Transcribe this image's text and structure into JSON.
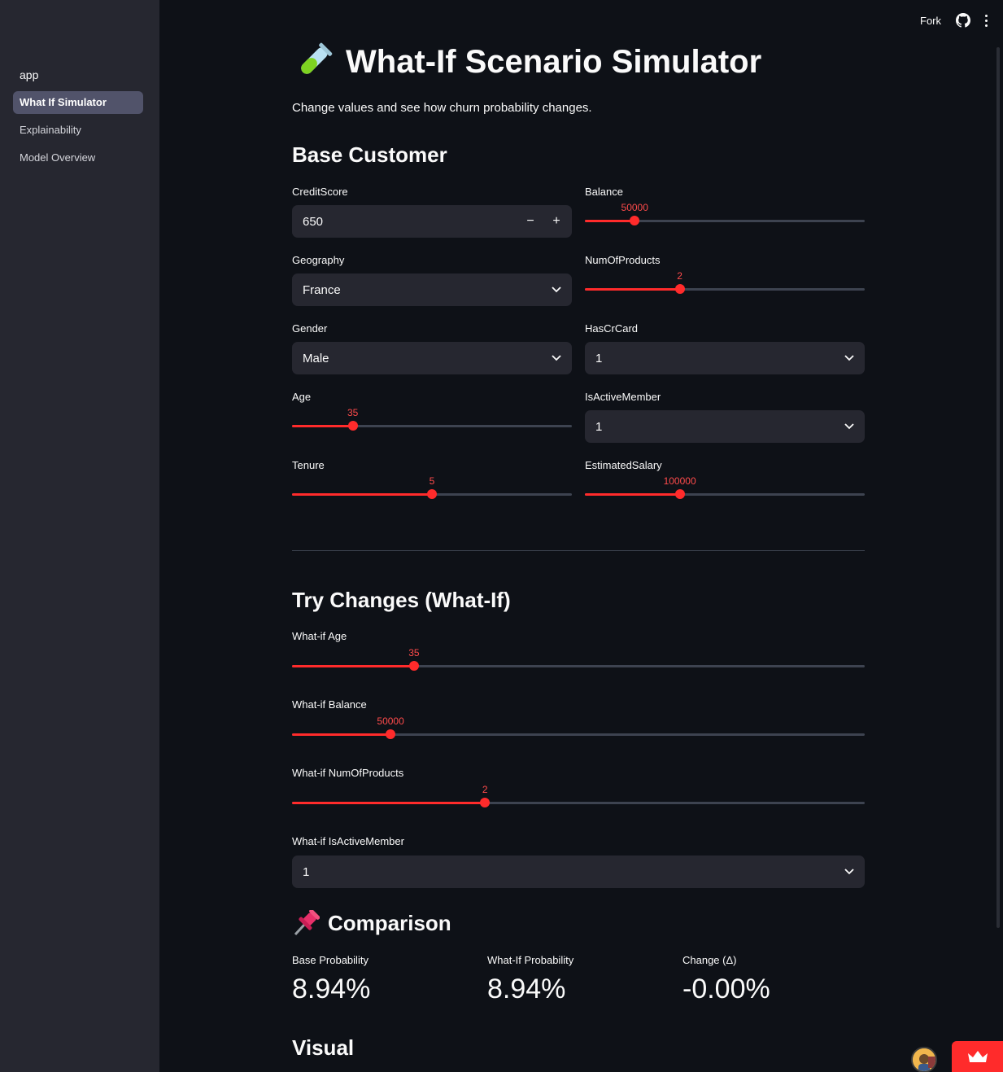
{
  "sidebar": {
    "items": [
      {
        "label": "app"
      },
      {
        "label": "What If Simulator"
      },
      {
        "label": "Explainability"
      },
      {
        "label": "Model Overview"
      }
    ]
  },
  "topbar": {
    "fork_label": "Fork"
  },
  "page": {
    "title": "What-If Scenario Simulator",
    "subtitle": "Change values and see how churn probability changes.",
    "base_heading": "Base Customer",
    "whatif_heading": "Try Changes (What-If)",
    "comparison_heading": "Comparison",
    "visual_heading": "Visual"
  },
  "base": {
    "credit_score": {
      "label": "CreditScore",
      "value": "650"
    },
    "geography": {
      "label": "Geography",
      "value": "France"
    },
    "gender": {
      "label": "Gender",
      "value": "Male"
    },
    "age": {
      "label": "Age",
      "value": "35",
      "fraction": 0.217
    },
    "tenure": {
      "label": "Tenure",
      "value": "5",
      "fraction": 0.5
    },
    "balance": {
      "label": "Balance",
      "value": "50000",
      "fraction": 0.178
    },
    "num_products": {
      "label": "NumOfProducts",
      "value": "2",
      "fraction": 0.339
    },
    "has_cr_card": {
      "label": "HasCrCard",
      "value": "1"
    },
    "is_active": {
      "label": "IsActiveMember",
      "value": "1"
    },
    "salary": {
      "label": "EstimatedSalary",
      "value": "100000",
      "fraction": 0.339
    }
  },
  "whatif": {
    "age": {
      "label": "What-if Age",
      "value": "35",
      "fraction": 0.213
    },
    "balance": {
      "label": "What-if Balance",
      "value": "50000",
      "fraction": 0.172
    },
    "num_products": {
      "label": "What-if NumOfProducts",
      "value": "2",
      "fraction": 0.337
    },
    "is_active": {
      "label": "What-if IsActiveMember",
      "value": "1"
    }
  },
  "comparison": {
    "base": {
      "label": "Base Probability",
      "value": "8.94%"
    },
    "whatif": {
      "label": "What-If Probability",
      "value": "8.94%"
    },
    "change": {
      "label": "Change (Δ)",
      "value": "-0.00%"
    }
  },
  "colors": {
    "accent": "#ff2b2b",
    "background": "#0e1117",
    "sidebar": "#262730",
    "input": "#262730"
  },
  "icons": [
    "test-tube-icon",
    "pushpin-icon",
    "github-icon",
    "kebab-menu-icon",
    "chevron-down-icon",
    "crown-icon"
  ]
}
